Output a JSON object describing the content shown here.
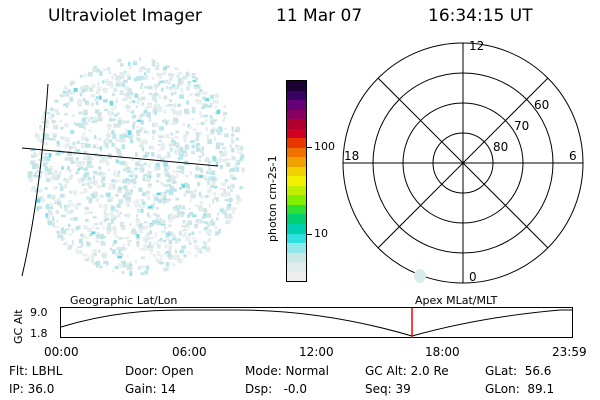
{
  "header": {
    "title": "Ultraviolet Imager",
    "date": "11 Mar 07",
    "time": "16:34:15 UT"
  },
  "colorbar": {
    "label": "photon cm-2s-1",
    "ticks": [
      "100",
      "10"
    ],
    "colors": [
      "#1a0033",
      "#3a0060",
      "#66007a",
      "#8a0060",
      "#b00030",
      "#d00020",
      "#e83800",
      "#f07000",
      "#f0a000",
      "#f0d000",
      "#f0f000",
      "#c0f000",
      "#80f000",
      "#30e030",
      "#00d070",
      "#00d0b0",
      "#30e0e0",
      "#90e8e8",
      "#c8e8e8",
      "#e0ecec",
      "#eeeeee"
    ]
  },
  "polar": {
    "mlt_labels": {
      "top": "12",
      "left": "18",
      "right": "6",
      "bottom": "0"
    },
    "lat_labels": [
      "60",
      "70",
      "80"
    ]
  },
  "timeline": {
    "left_title": "Geographic Lat/Lon",
    "right_title": "Apex MLat/MLT",
    "axis_label": "GC Alt",
    "y_ticks": [
      "9.0",
      "1.8"
    ],
    "x_ticks": [
      "00:00",
      "06:00",
      "12:00",
      "18:00",
      "23:59"
    ],
    "current_marker_color": "#ff0000"
  },
  "status": {
    "flt": "Flt: LBHL",
    "door": "Door: Open",
    "mode": "Mode: Normal",
    "gcalt": "GC Alt: 2.0 Re",
    "glat": "GLat:  56.6",
    "ip": "IP: 36.0",
    "gain": "Gain: 14",
    "dsp": "Dsp:   -0.0",
    "seq": "Seq: 39",
    "glon": "GLon:  89.1"
  }
}
